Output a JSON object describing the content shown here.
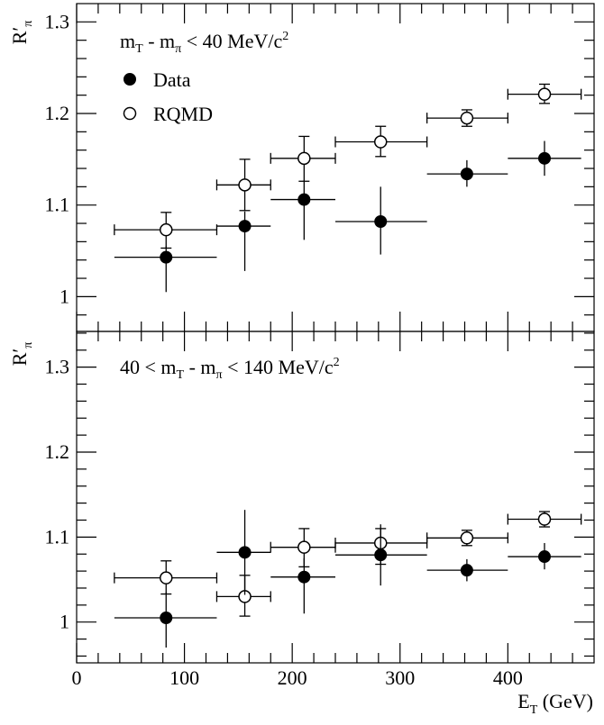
{
  "chart_data": {
    "type": "scatter",
    "xlabel": "E",
    "xlabel_sub": "T",
    "xlabel_unit": " (GeV)",
    "xlim": [
      0,
      480
    ],
    "x_ticks": [
      "0",
      "100",
      "200",
      "300",
      "400"
    ],
    "ylabel": "R′",
    "ylabel_sub": "π",
    "legend": {
      "placement": "top-left",
      "entries": [
        {
          "name": "Data",
          "marker": "filled-circle"
        },
        {
          "name": "RQMD",
          "marker": "open-circle"
        }
      ]
    },
    "panels": [
      {
        "annotation_parts": [
          "m",
          "T",
          " - m",
          "π",
          " < 40 MeV/c",
          "2"
        ],
        "ylim": [
          0.962,
          1.32
        ],
        "y_ticks": [
          {
            "value": 1.3,
            "label": "1.3"
          },
          {
            "value": 1.2,
            "label": "1.2"
          },
          {
            "value": 1.1,
            "label": "1.1"
          },
          {
            "value": 1.0,
            "label": "1"
          }
        ],
        "series": [
          {
            "name": "Data",
            "points": [
              {
                "x": 83,
                "xerr": [
                  35,
                  130
                ],
                "y": 1.043,
                "yerr": [
                  1.005,
                  1.055
                ]
              },
              {
                "x": 156,
                "xerr": [
                  130,
                  180
                ],
                "y": 1.077,
                "yerr": [
                  1.028,
                  1.093
                ]
              },
              {
                "x": 211,
                "xerr": [
                  180,
                  240
                ],
                "y": 1.106,
                "yerr": [
                  1.062,
                  1.127
                ]
              },
              {
                "x": 282,
                "xerr": [
                  240,
                  325
                ],
                "y": 1.082,
                "yerr": [
                  1.046,
                  1.12
                ]
              },
              {
                "x": 362,
                "xerr": [
                  325,
                  400
                ],
                "y": 1.134,
                "yerr": [
                  1.12,
                  1.149
                ]
              },
              {
                "x": 434,
                "xerr": [
                  400,
                  468
                ],
                "y": 1.151,
                "yerr": [
                  1.132,
                  1.17
                ]
              }
            ]
          },
          {
            "name": "RQMD",
            "points": [
              {
                "x": 83,
                "xerr": [
                  35,
                  130
                ],
                "y": 1.073,
                "yerr": [
                  1.053,
                  1.092
                ]
              },
              {
                "x": 156,
                "xerr": [
                  130,
                  180
                ],
                "y": 1.122,
                "yerr": [
                  1.094,
                  1.15
                ]
              },
              {
                "x": 211,
                "xerr": [
                  180,
                  240
                ],
                "y": 1.151,
                "yerr": [
                  1.126,
                  1.175
                ]
              },
              {
                "x": 282,
                "xerr": [
                  240,
                  325
                ],
                "y": 1.169,
                "yerr": [
                  1.153,
                  1.186
                ]
              },
              {
                "x": 362,
                "xerr": [
                  325,
                  400
                ],
                "y": 1.195,
                "yerr": [
                  1.186,
                  1.204
                ]
              },
              {
                "x": 434,
                "xerr": [
                  400,
                  468
                ],
                "y": 1.221,
                "yerr": [
                  1.211,
                  1.232
                ]
              }
            ]
          }
        ]
      },
      {
        "annotation_parts": [
          "40 < m",
          "T",
          " - m",
          "π",
          " < 140 MeV/c",
          "2"
        ],
        "ylim": [
          0.952,
          1.342
        ],
        "y_ticks": [
          {
            "value": 1.3,
            "label": "1.3"
          },
          {
            "value": 1.2,
            "label": "1.2"
          },
          {
            "value": 1.1,
            "label": "1.1"
          },
          {
            "value": 1.0,
            "label": "1"
          }
        ],
        "series": [
          {
            "name": "Data",
            "points": [
              {
                "x": 83,
                "xerr": [
                  35,
                  130
                ],
                "y": 1.005,
                "yerr": [
                  0.97,
                  1.035
                ]
              },
              {
                "x": 156,
                "xerr": [
                  130,
                  180
                ],
                "y": 1.082,
                "yerr": [
                  1.032,
                  1.132
                ]
              },
              {
                "x": 211,
                "xerr": [
                  180,
                  240
                ],
                "y": 1.053,
                "yerr": [
                  1.01,
                  1.075
                ]
              },
              {
                "x": 282,
                "xerr": [
                  240,
                  325
                ],
                "y": 1.079,
                "yerr": [
                  1.043,
                  1.115
                ]
              },
              {
                "x": 362,
                "xerr": [
                  325,
                  400
                ],
                "y": 1.061,
                "yerr": [
                  1.048,
                  1.074
                ]
              },
              {
                "x": 434,
                "xerr": [
                  400,
                  468
                ],
                "y": 1.077,
                "yerr": [
                  1.062,
                  1.093
                ]
              }
            ]
          },
          {
            "name": "RQMD",
            "points": [
              {
                "x": 83,
                "xerr": [
                  35,
                  130
                ],
                "y": 1.052,
                "yerr": [
                  1.033,
                  1.072
                ]
              },
              {
                "x": 156,
                "xerr": [
                  130,
                  180
                ],
                "y": 1.03,
                "yerr": [
                  1.007,
                  1.055
                ]
              },
              {
                "x": 211,
                "xerr": [
                  180,
                  240
                ],
                "y": 1.088,
                "yerr": [
                  1.065,
                  1.11
                ]
              },
              {
                "x": 282,
                "xerr": [
                  240,
                  325
                ],
                "y": 1.093,
                "yerr": [
                  1.068,
                  1.11
                ]
              },
              {
                "x": 362,
                "xerr": [
                  325,
                  400
                ],
                "y": 1.099,
                "yerr": [
                  1.09,
                  1.108
                ]
              },
              {
                "x": 434,
                "xerr": [
                  400,
                  468
                ],
                "y": 1.121,
                "yerr": [
                  1.112,
                  1.13
                ]
              }
            ]
          }
        ]
      }
    ]
  }
}
